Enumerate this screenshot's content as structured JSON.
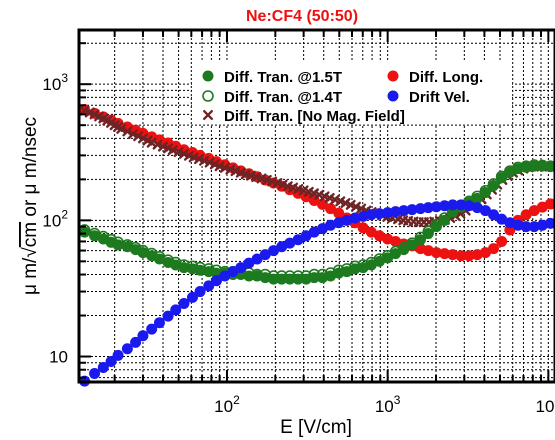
{
  "chart_data": {
    "type": "scatter",
    "title": "Ne:CF4 (50:50)",
    "title_color": "#ee1111",
    "xlabel": "E [V/cm]",
    "ylabel_parts": [
      "μ m/",
      "cm",
      " or μ m/nsec"
    ],
    "x_scale": "log",
    "y_scale": "log",
    "xlim": [
      12,
      11000
    ],
    "ylim": [
      6.5,
      2500
    ],
    "x_tick_labels": [
      {
        "base": "10",
        "exp": "2",
        "value": 100
      },
      {
        "base": "10",
        "exp": "3",
        "value": 1000
      },
      {
        "base": "10",
        "exp": "4",
        "value": 10000
      }
    ],
    "y_tick_labels": [
      {
        "base": "10",
        "exp": "",
        "value": 10
      },
      {
        "base": "10",
        "exp": "2",
        "value": 100
      },
      {
        "base": "10",
        "exp": "3",
        "value": 1000
      }
    ],
    "grid": true,
    "legend_position": "top-right",
    "series": [
      {
        "name": "Diff. Tran. @1.5T",
        "marker": "filled-circle",
        "color": "#1e7a1e",
        "x": [
          13,
          15,
          17,
          19,
          21,
          24,
          27,
          30,
          34,
          38,
          43,
          48,
          54,
          61,
          68,
          77,
          86,
          97,
          109,
          122,
          137,
          154,
          173,
          195,
          219,
          246,
          277,
          311,
          349,
          393,
          441,
          496,
          557,
          626,
          704,
          791,
          889,
          999,
          1120,
          1260,
          1420,
          1600,
          1790,
          2010,
          2260,
          2540,
          2860,
          3210,
          3610,
          4060,
          4560,
          5120,
          5760,
          6470,
          7270,
          8170,
          9180,
          10300
        ],
        "y": [
          82,
          77,
          73,
          69,
          66,
          64,
          61,
          58,
          55,
          52,
          49,
          47,
          45,
          44,
          43,
          42,
          41,
          41,
          40,
          40,
          39,
          39,
          38,
          37,
          37,
          37,
          37,
          37,
          38,
          38,
          39,
          41,
          42,
          44,
          45,
          47,
          50,
          53,
          57,
          61,
          66,
          72,
          80,
          90,
          100,
          115,
          125,
          135,
          145,
          160,
          180,
          205,
          225,
          240,
          245,
          250,
          250,
          248
        ]
      },
      {
        "name": "Diff. Tran. @1.4T",
        "marker": "open-circle",
        "color": "#1e7a1e",
        "x": [
          13,
          15,
          17,
          19,
          21,
          24,
          27,
          30,
          34,
          38,
          43,
          48,
          54,
          61,
          68,
          77,
          86,
          97,
          109,
          122,
          137,
          154,
          173,
          195,
          219,
          246,
          277,
          311,
          349,
          393,
          441,
          496,
          557,
          626,
          704,
          791,
          889,
          999,
          1120,
          1260,
          1420,
          1600,
          1790,
          2010,
          2260,
          2540,
          2860,
          3210,
          3610,
          4060,
          4560,
          5120,
          5760,
          6470,
          7270,
          8170,
          9180,
          10300
        ],
        "y": [
          85,
          80,
          76,
          72,
          69,
          66,
          63,
          60,
          57,
          54,
          51,
          49,
          47,
          46,
          45,
          44,
          43,
          42,
          42,
          41,
          41,
          40,
          40,
          39,
          39,
          39,
          39,
          39,
          40,
          40,
          41,
          43,
          44,
          46,
          47,
          49,
          52,
          55,
          59,
          63,
          68,
          75,
          83,
          93,
          104,
          118,
          128,
          138,
          150,
          165,
          185,
          210,
          230,
          245,
          250,
          255,
          253,
          250
        ]
      },
      {
        "name": "Diff. Tran. [No Mag. Field]",
        "marker": "x",
        "color": "#6e2424",
        "x": [
          13,
          14,
          15,
          16,
          17,
          18,
          19,
          20,
          21,
          22,
          24,
          26,
          28,
          30,
          32,
          34,
          37,
          40,
          43,
          46,
          50,
          54,
          58,
          62,
          67,
          72,
          78,
          84,
          90,
          97,
          105,
          113,
          122,
          131,
          141,
          152,
          164,
          177,
          191,
          206,
          222,
          239,
          258,
          278,
          300,
          323,
          348,
          375,
          405,
          436,
          470,
          507,
          546,
          589,
          635,
          684,
          737,
          795,
          857,
          923,
          995,
          1070,
          1160,
          1250,
          1340,
          1450,
          1560,
          1680,
          1810,
          1950,
          2110,
          2270,
          2450,
          2640,
          2840,
          3060,
          3300,
          3560,
          3840,
          4140,
          4460,
          4810,
          5180,
          5590,
          6020,
          6490,
          7000,
          7540,
          8130,
          8760,
          9440,
          10200
        ],
        "y": [
          640,
          620,
          600,
          580,
          560,
          540,
          520,
          500,
          485,
          470,
          450,
          430,
          415,
          400,
          385,
          372,
          360,
          348,
          338,
          328,
          318,
          308,
          298,
          290,
          282,
          274,
          266,
          258,
          250,
          243,
          236,
          230,
          224,
          218,
          213,
          208,
          203,
          198,
          193,
          188,
          183,
          178,
          174,
          170,
          166,
          162,
          158,
          154,
          150,
          146,
          142,
          138,
          134,
          130,
          126,
          122,
          118,
          115,
          112,
          109,
          106,
          104,
          102,
          100,
          99,
          98,
          97,
          97,
          97,
          98,
          99,
          101,
          104,
          108,
          112,
          118,
          125,
          133,
          143,
          155,
          168,
          183,
          198,
          212,
          224,
          233,
          240,
          245,
          248,
          250,
          250,
          248
        ]
      },
      {
        "name": "Diff. Long.",
        "marker": "filled-circle",
        "color": "#ee1111",
        "x": [
          13,
          15,
          17,
          19,
          21,
          24,
          27,
          30,
          34,
          38,
          43,
          48,
          54,
          61,
          68,
          77,
          86,
          97,
          109,
          122,
          137,
          154,
          173,
          195,
          219,
          246,
          277,
          311,
          349,
          393,
          441,
          496,
          557,
          626,
          704,
          791,
          889,
          999,
          1120,
          1260,
          1420,
          1600,
          1790,
          2010,
          2260,
          2540,
          2860,
          3210,
          3610,
          4060,
          4560,
          5120,
          5760,
          6470,
          7270,
          8170,
          9180,
          10300
        ],
        "y": [
          650,
          610,
          575,
          545,
          515,
          485,
          460,
          435,
          410,
          390,
          370,
          350,
          330,
          315,
          300,
          285,
          270,
          256,
          243,
          231,
          220,
          209,
          198,
          188,
          178,
          168,
          158,
          149,
          140,
          131,
          122,
          113,
          104,
          96,
          88,
          82,
          77,
          73,
          70,
          67,
          65,
          62,
          60,
          58,
          57,
          56,
          55,
          55,
          56,
          58,
          62,
          70,
          85,
          100,
          110,
          118,
          125,
          132
        ]
      },
      {
        "name": "Drift Vel.",
        "marker": "filled-circle",
        "color": "#1a1aee",
        "x": [
          13,
          15,
          17,
          19,
          21,
          24,
          27,
          30,
          34,
          38,
          43,
          48,
          54,
          61,
          68,
          77,
          86,
          97,
          109,
          122,
          137,
          154,
          173,
          195,
          219,
          246,
          277,
          311,
          349,
          393,
          441,
          496,
          557,
          626,
          704,
          791,
          889,
          999,
          1120,
          1260,
          1420,
          1600,
          1790,
          2010,
          2260,
          2540,
          2860,
          3210,
          3610,
          4060,
          4560,
          5120,
          5760,
          6470,
          7270,
          8170,
          9180,
          10300
        ],
        "y": [
          6.6,
          7.5,
          8.3,
          9.2,
          10.2,
          11.4,
          12.7,
          14.2,
          15.9,
          17.7,
          19.8,
          22.0,
          24.5,
          27.2,
          30.0,
          33.0,
          36.0,
          39.0,
          42.0,
          45.0,
          48.5,
          52.0,
          56.0,
          60.0,
          64.0,
          68.0,
          72.0,
          77.0,
          82.0,
          87.0,
          92.0,
          96.0,
          100.0,
          104.0,
          107.0,
          110.0,
          112.0,
          114.0,
          116.0,
          118.0,
          120.0,
          122.0,
          124.0,
          126.0,
          128.0,
          130.0,
          130.0,
          128.0,
          124.0,
          118.0,
          110.0,
          102.0,
          96.0,
          92.0,
          90.0,
          90.0,
          92.0,
          95.0
        ]
      }
    ]
  }
}
